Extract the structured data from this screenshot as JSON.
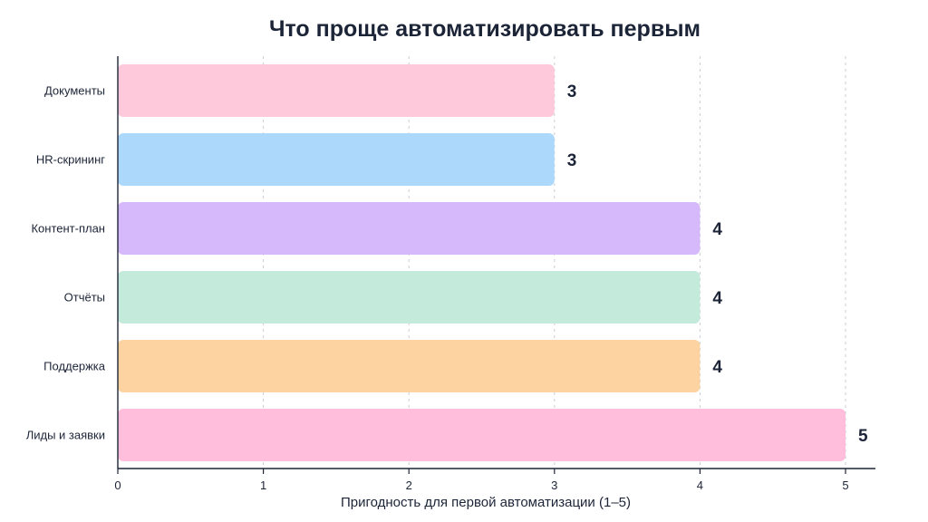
{
  "chart_data": {
    "type": "bar",
    "orientation": "horizontal",
    "title": "Что проще автоматизировать первым",
    "xlabel": "Пригодность для первой автоматизации (1–5)",
    "ylabel": "",
    "xlim": [
      0,
      5.2
    ],
    "xticks": [
      0,
      1,
      2,
      3,
      4,
      5
    ],
    "grid": true,
    "categories": [
      "Документы",
      "HR-скрининг",
      "Контент-план",
      "Отчёты",
      "Поддержка",
      "Лиды и заявки"
    ],
    "values": [
      3,
      3,
      4,
      4,
      4,
      5
    ],
    "colors": [
      "#ffc9dc",
      "#acd9fb",
      "#d6b9fb",
      "#c3eadb",
      "#fdd3a2",
      "#ffbedb"
    ]
  }
}
